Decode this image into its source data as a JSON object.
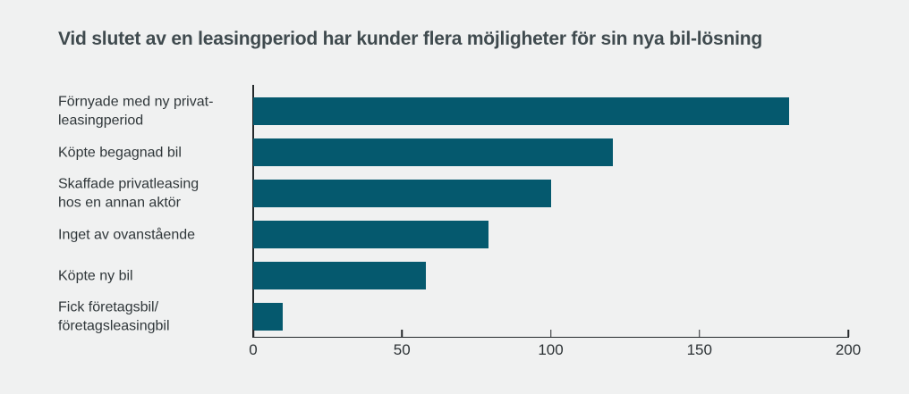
{
  "chart_data": {
    "type": "bar",
    "orientation": "horizontal",
    "title": "Vid slutet av en leasingperiod har kunder flera möjligheter för sin nya bil-lösning",
    "categories": [
      "Förnyade med ny privat-leasingperiod",
      "Köpte begagnad bil",
      "Skaffade privatleasing hos en annan aktör",
      "Inget av ovanstående",
      "Köpte ny bil",
      "Fick företagsbil/företagsleasingbil"
    ],
    "label_lines": [
      [
        "Förnyade med ny privat-",
        "leasingperiod"
      ],
      [
        "Köpte begagnad bil"
      ],
      [
        "Skaffade privatleasing",
        "hos en annan aktör"
      ],
      [
        "Inget av ovanstående"
      ],
      [
        "Köpte ny bil"
      ],
      [
        "Fick företagsbil/",
        "företagsleasingbil"
      ]
    ],
    "values": [
      180,
      121,
      100,
      79,
      58,
      10
    ],
    "xlabel": "",
    "ylabel": "",
    "xlim": [
      0,
      200
    ],
    "xticks": [
      0,
      50,
      100,
      150,
      200
    ],
    "grid": false,
    "legend": false,
    "colors": {
      "bar": "#05596E",
      "background": "#F0F1F1",
      "axis": "#24292B",
      "title_text": "#3F4A4E",
      "label_text": "#30373A",
      "tick_text": "#2B3134"
    }
  }
}
